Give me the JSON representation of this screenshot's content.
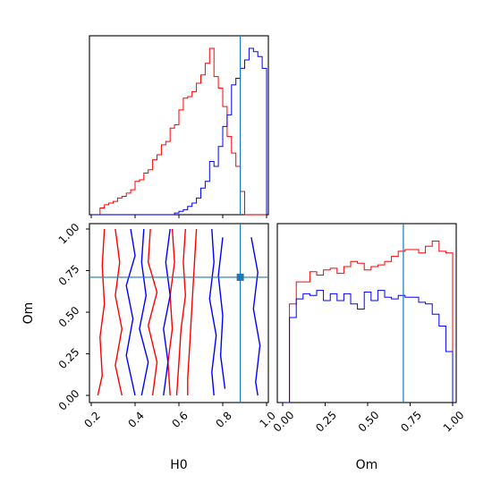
{
  "chart_data": [
    {
      "type": "histogram",
      "panel": "H0 marginal",
      "bin_edges": [
        0.2,
        0.22,
        0.24,
        0.26,
        0.28,
        0.3,
        0.32,
        0.34,
        0.36,
        0.38,
        0.4,
        0.42,
        0.44,
        0.46,
        0.48,
        0.5,
        0.52,
        0.54,
        0.56,
        0.58,
        0.6,
        0.62,
        0.64,
        0.66,
        0.68,
        0.7,
        0.72,
        0.74,
        0.76,
        0.78,
        0.8,
        0.82,
        0.84,
        0.86,
        0.88,
        0.9,
        0.92,
        0.94,
        0.96,
        0.98,
        1.0
      ],
      "xlim": [
        0.2,
        1.0
      ],
      "series": [
        {
          "color": "#ff0000",
          "counts": [
            0.0,
            0.0,
            0.04,
            0.06,
            0.07,
            0.08,
            0.1,
            0.11,
            0.13,
            0.15,
            0.2,
            0.21,
            0.25,
            0.27,
            0.33,
            0.36,
            0.42,
            0.44,
            0.52,
            0.54,
            0.63,
            0.7,
            0.71,
            0.74,
            0.79,
            0.84,
            0.91,
            1.0,
            0.83,
            0.76,
            0.65,
            0.47,
            0.37,
            0.29,
            0.14,
            0.0,
            0.0,
            0.0,
            0.0,
            0.0
          ]
        },
        {
          "color": "#0000ff",
          "counts": [
            0,
            0,
            0,
            0,
            0,
            0,
            0,
            0,
            0,
            0,
            0,
            0,
            0,
            0,
            0,
            0,
            0,
            0,
            0,
            0.01,
            0.02,
            0.03,
            0.05,
            0.07,
            0.1,
            0.16,
            0.2,
            0.32,
            0.29,
            0.41,
            0.53,
            0.6,
            0.78,
            0.82,
            0.88,
            0.93,
            1.0,
            0.98,
            0.95,
            0.88
          ]
        }
      ],
      "truth": 0.88
    },
    {
      "type": "contour",
      "panel": "H0 vs Om joint",
      "xlabel": "H0",
      "ylabel": "Om",
      "xlim": [
        0.2,
        1.0
      ],
      "ylim": [
        0.0,
        1.0
      ],
      "xticks": [
        "0.2",
        "0.4",
        "0.6",
        "0.8",
        "1.0"
      ],
      "yticks": [
        "0.00",
        "0.25",
        "0.50",
        "0.75",
        "1.00"
      ],
      "series": [
        {
          "color": "#ff0000",
          "contours": [
            [
              [
                0.26,
                1.0
              ],
              [
                0.25,
                0.78
              ],
              [
                0.26,
                0.55
              ],
              [
                0.24,
                0.35
              ],
              [
                0.25,
                0.12
              ],
              [
                0.23,
                0.0
              ]
            ],
            [
              [
                0.31,
                1.0
              ],
              [
                0.33,
                0.8
              ],
              [
                0.31,
                0.6
              ],
              [
                0.34,
                0.4
              ],
              [
                0.31,
                0.18
              ],
              [
                0.34,
                0.0
              ]
            ],
            [
              [
                0.47,
                1.0
              ],
              [
                0.46,
                0.8
              ],
              [
                0.5,
                0.62
              ],
              [
                0.46,
                0.42
              ],
              [
                0.5,
                0.2
              ],
              [
                0.48,
                0.0
              ]
            ],
            [
              [
                0.57,
                1.0
              ],
              [
                0.58,
                0.8
              ],
              [
                0.56,
                0.6
              ],
              [
                0.57,
                0.4
              ],
              [
                0.55,
                0.2
              ],
              [
                0.56,
                0.0
              ]
            ],
            [
              [
                0.63,
                1.0
              ],
              [
                0.62,
                0.8
              ],
              [
                0.63,
                0.6
              ],
              [
                0.61,
                0.4
              ],
              [
                0.6,
                0.2
              ],
              [
                0.59,
                0.0
              ]
            ],
            [
              [
                0.68,
                1.0
              ],
              [
                0.67,
                0.78
              ],
              [
                0.66,
                0.55
              ],
              [
                0.65,
                0.32
              ],
              [
                0.64,
                0.1
              ],
              [
                0.64,
                0.0
              ]
            ]
          ]
        },
        {
          "color": "#0000ff",
          "contours": [
            [
              [
                0.38,
                1.0
              ],
              [
                0.4,
                0.84
              ],
              [
                0.36,
                0.66
              ],
              [
                0.39,
                0.46
              ],
              [
                0.36,
                0.24
              ],
              [
                0.4,
                0.0
              ]
            ],
            [
              [
                0.44,
                1.0
              ],
              [
                0.43,
                0.8
              ],
              [
                0.45,
                0.6
              ],
              [
                0.42,
                0.4
              ],
              [
                0.46,
                0.2
              ],
              [
                0.43,
                0.0
              ]
            ],
            [
              [
                0.56,
                1.0
              ],
              [
                0.54,
                0.8
              ],
              [
                0.56,
                0.6
              ],
              [
                0.53,
                0.4
              ],
              [
                0.55,
                0.2
              ],
              [
                0.53,
                0.0
              ]
            ],
            [
              [
                0.75,
                1.0
              ],
              [
                0.76,
                0.8
              ],
              [
                0.74,
                0.58
              ],
              [
                0.77,
                0.36
              ],
              [
                0.75,
                0.14
              ],
              [
                0.76,
                0.0
              ]
            ],
            [
              [
                0.8,
                0.95
              ],
              [
                0.78,
                0.72
              ],
              [
                0.8,
                0.48
              ],
              [
                0.79,
                0.24
              ],
              [
                0.81,
                0.04
              ]
            ],
            [
              [
                0.93,
                0.95
              ],
              [
                0.96,
                0.74
              ],
              [
                0.94,
                0.52
              ],
              [
                0.97,
                0.3
              ],
              [
                0.95,
                0.08
              ],
              [
                0.96,
                0.0
              ]
            ]
          ]
        }
      ],
      "truth": {
        "x": 0.88,
        "y": 0.71
      }
    },
    {
      "type": "histogram",
      "panel": "Om marginal",
      "xlabel": "Om",
      "bin_edges": [
        0.0,
        0.04,
        0.08,
        0.12,
        0.16,
        0.2,
        0.24,
        0.28,
        0.32,
        0.36,
        0.4,
        0.44,
        0.48,
        0.52,
        0.56,
        0.6,
        0.64,
        0.68,
        0.72,
        0.76,
        0.8,
        0.84,
        0.88,
        0.92,
        0.96,
        1.0
      ],
      "xlim": [
        0.0,
        1.0
      ],
      "xticks": [
        "0.00",
        "0.25",
        "0.50",
        "0.75",
        "1.00"
      ],
      "series": [
        {
          "color": "#ff0000",
          "counts": [
            0.0,
            0.58,
            0.71,
            0.71,
            0.77,
            0.75,
            0.78,
            0.79,
            0.76,
            0.8,
            0.83,
            0.82,
            0.78,
            0.8,
            0.81,
            0.83,
            0.86,
            0.89,
            0.9,
            0.9,
            0.88,
            0.92,
            0.95,
            0.89,
            0.88
          ]
        },
        {
          "color": "#0000ff",
          "counts": [
            0.0,
            0.5,
            0.61,
            0.64,
            0.63,
            0.66,
            0.6,
            0.64,
            0.6,
            0.64,
            0.58,
            0.55,
            0.65,
            0.6,
            0.66,
            0.62,
            0.61,
            0.63,
            0.62,
            0.62,
            0.59,
            0.58,
            0.52,
            0.45,
            0.3
          ]
        }
      ],
      "truth": 0.71
    }
  ]
}
